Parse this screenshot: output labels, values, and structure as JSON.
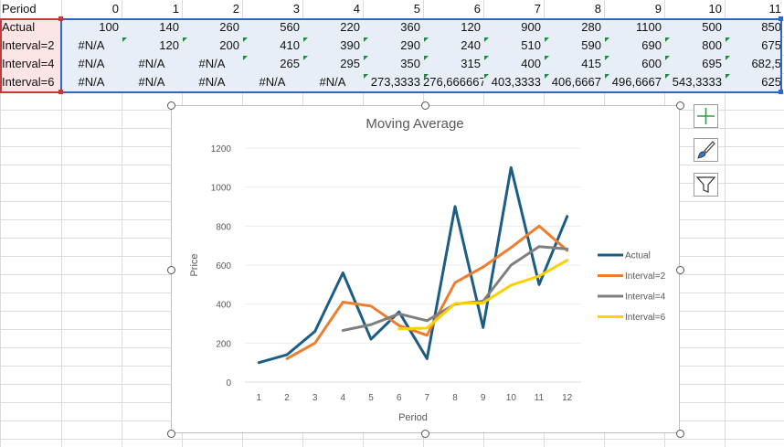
{
  "sheet": {
    "header_row": {
      "label": "Period",
      "values": [
        "0",
        "1",
        "2",
        "3",
        "4",
        "5",
        "6",
        "7",
        "8",
        "9",
        "10",
        "11"
      ]
    },
    "rows": [
      {
        "label": "Actual",
        "values": [
          "100",
          "140",
          "260",
          "560",
          "220",
          "360",
          "120",
          "900",
          "280",
          "1100",
          "500",
          "850"
        ]
      },
      {
        "label": "Interval=2",
        "values": [
          "#N/A",
          "120",
          "200",
          "410",
          "390",
          "290",
          "240",
          "510",
          "590",
          "690",
          "800",
          "675"
        ]
      },
      {
        "label": "Interval=4",
        "values": [
          "#N/A",
          "#N/A",
          "#N/A",
          "265",
          "295",
          "350",
          "315",
          "400",
          "415",
          "600",
          "695",
          "682,5"
        ]
      },
      {
        "label": "Interval=6",
        "values": [
          "#N/A",
          "#N/A",
          "#N/A",
          "#N/A",
          "#N/A",
          "273,3333",
          "276,666667",
          "403,3333",
          "406,6667",
          "496,6667",
          "543,3333",
          "625"
        ]
      }
    ]
  },
  "chart_data": {
    "type": "line",
    "title": "Moving Average",
    "xlabel": "Period",
    "ylabel": "Price",
    "categories": [
      "1",
      "2",
      "3",
      "4",
      "5",
      "6",
      "7",
      "8",
      "9",
      "10",
      "11",
      "12"
    ],
    "ylim": [
      0,
      1200
    ],
    "yticks": [
      "0",
      "200",
      "400",
      "600",
      "800",
      "1000",
      "1200"
    ],
    "grid": true,
    "legend": "right",
    "series": [
      {
        "name": "Actual",
        "color": "#1c5d85",
        "values": [
          100,
          140,
          260,
          560,
          220,
          360,
          120,
          900,
          280,
          1100,
          500,
          850
        ]
      },
      {
        "name": "Interval=2",
        "color": "#ed7d31",
        "values": [
          null,
          120,
          200,
          410,
          390,
          290,
          240,
          510,
          590,
          690,
          800,
          675
        ]
      },
      {
        "name": "Interval=4",
        "color": "#7f7f7f",
        "values": [
          null,
          null,
          null,
          265,
          295,
          350,
          315,
          400,
          415,
          600,
          695,
          682.5
        ]
      },
      {
        "name": "Interval=6",
        "color": "#ffd000",
        "values": [
          null,
          null,
          null,
          null,
          null,
          273.3333,
          276.666667,
          403.3333,
          406.6667,
          496.6667,
          543.3333,
          625
        ]
      }
    ]
  },
  "side_buttons": {
    "chart_elements": "plus-icon",
    "chart_styles": "brush-icon",
    "chart_filters": "funnel-icon"
  }
}
